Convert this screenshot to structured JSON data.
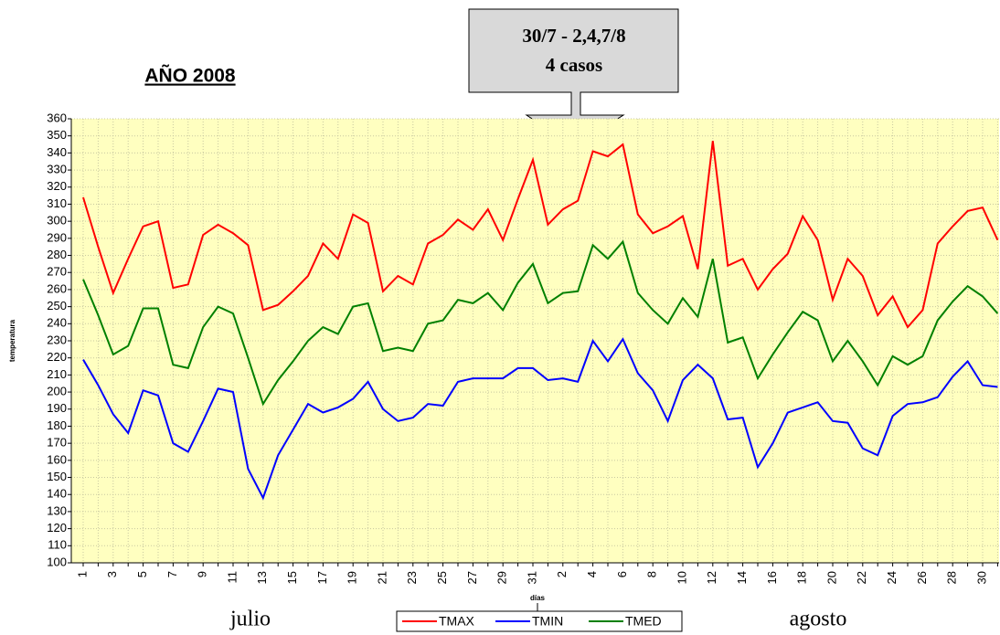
{
  "chart_data": {
    "type": "line",
    "title": "AÑO 2008",
    "annotation": [
      "30/7 - 2,4,7/8",
      "4 casos"
    ],
    "y_label": "temperatura",
    "x_label": "días",
    "month_labels": [
      "julio",
      "agosto"
    ],
    "categories": [
      "1",
      null,
      "3",
      null,
      "5",
      null,
      "7",
      null,
      "9",
      null,
      "11",
      null,
      "13",
      null,
      "15",
      null,
      "17",
      null,
      "19",
      null,
      "21",
      null,
      "23",
      null,
      "25",
      null,
      "27",
      null,
      "29",
      null,
      "31",
      null,
      "2",
      null,
      "4",
      null,
      "6",
      null,
      "8",
      null,
      "10",
      null,
      "12",
      null,
      "14",
      null,
      "16",
      null,
      "18",
      null,
      "20",
      null,
      "22",
      null,
      "24",
      null,
      "26",
      null,
      "28",
      null,
      "30",
      null
    ],
    "series": [
      {
        "name": "TMAX",
        "color": "#ff0000",
        "values": [
          314,
          285,
          258,
          278,
          297,
          300,
          261,
          263,
          292,
          298,
          293,
          286,
          248,
          251,
          259,
          268,
          287,
          278,
          304,
          299,
          259,
          268,
          263,
          287,
          292,
          301,
          295,
          307,
          289,
          313,
          336,
          298,
          307,
          312,
          341,
          338,
          345,
          304,
          293,
          297,
          303,
          272,
          347,
          274,
          278,
          260,
          272,
          281,
          303,
          289,
          254,
          278,
          268,
          245,
          256,
          238,
          248,
          287,
          297,
          306,
          308,
          289
        ]
      },
      {
        "name": "TMIN",
        "color": "#0000ff",
        "values": [
          219,
          204,
          187,
          176,
          201,
          198,
          170,
          165,
          183,
          202,
          200,
          155,
          138,
          163,
          178,
          193,
          188,
          191,
          196,
          206,
          190,
          183,
          185,
          193,
          192,
          206,
          208,
          208,
          208,
          214,
          214,
          207,
          208,
          206,
          230,
          218,
          231,
          211,
          201,
          183,
          207,
          216,
          208,
          184,
          185,
          156,
          170,
          188,
          191,
          194,
          183,
          182,
          167,
          163,
          186,
          193,
          194,
          197,
          209,
          218,
          204,
          203
        ]
      },
      {
        "name": "TMED",
        "color": "#008000",
        "values": [
          266,
          245,
          222,
          227,
          249,
          249,
          216,
          214,
          238,
          250,
          246,
          220,
          193,
          207,
          218,
          230,
          238,
          234,
          250,
          252,
          224,
          226,
          224,
          240,
          242,
          254,
          252,
          258,
          248,
          264,
          275,
          252,
          258,
          259,
          286,
          278,
          288,
          258,
          248,
          240,
          255,
          244,
          278,
          229,
          232,
          208,
          222,
          235,
          247,
          242,
          218,
          230,
          218,
          204,
          221,
          216,
          221,
          242,
          253,
          262,
          256,
          246
        ]
      }
    ],
    "ylim": [
      100,
      360
    ],
    "yticks": [
      100,
      110,
      120,
      130,
      140,
      150,
      160,
      170,
      180,
      190,
      200,
      210,
      220,
      230,
      240,
      250,
      260,
      270,
      280,
      290,
      300,
      310,
      320,
      330,
      340,
      350,
      360
    ],
    "grid": true,
    "background": "#ffffc0"
  }
}
